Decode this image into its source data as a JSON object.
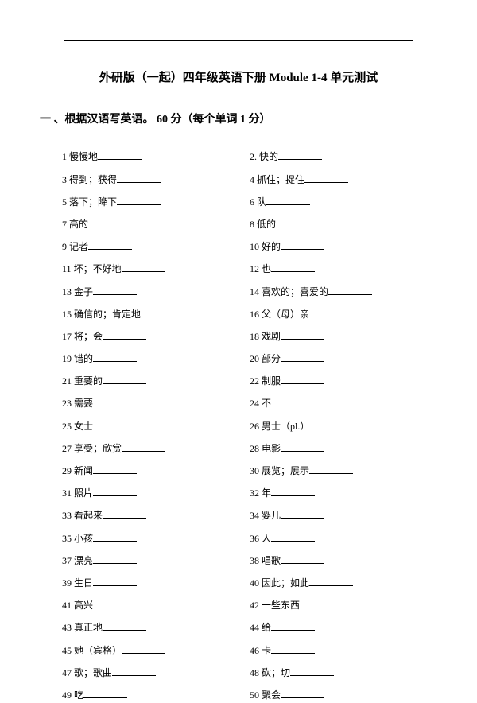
{
  "title": "外研版（一起）四年级英语下册  Module 1-4  单元测试",
  "section": "一 、根据汉语写英语。  60 分（每个单词 1 分）",
  "items": [
    {
      "n": "1",
      "t": "慢慢地",
      "n2": "2.",
      "t2": "快的"
    },
    {
      "n": "3",
      "t": "得到；获得",
      "n2": "4",
      "t2": "抓住；捉住"
    },
    {
      "n": "5",
      "t": "落下；降下",
      "n2": "6",
      "t2": "队"
    },
    {
      "n": "7",
      "t": "高的",
      "n2": "8",
      "t2": "低的"
    },
    {
      "n": "9",
      "t": "记者",
      "n2": "10",
      "t2": "好的"
    },
    {
      "n": "11",
      "t": "坏；不好地",
      "n2": "12",
      "t2": "也"
    },
    {
      "n": "13",
      "t": "金子",
      "n2": "14",
      "t2": "喜欢的；喜爱的"
    },
    {
      "n": "15",
      "t": "确信的；肯定地",
      "n2": "16",
      "t2": "父（母）亲"
    },
    {
      "n": "17",
      "t": "将；会",
      "n2": "18",
      "t2": "戏剧"
    },
    {
      "n": "19",
      "t": "错的",
      "n2": "20",
      "t2": "部分"
    },
    {
      "n": "21",
      "t": "重要的",
      "n2": "22",
      "t2": "制服"
    },
    {
      "n": "23",
      "t": "需要",
      "n2": "24",
      "t2": "不"
    },
    {
      "n": "25",
      "t": "女士",
      "n2": "26",
      "t2": "男士（pl.）"
    },
    {
      "n": "27",
      "t": "享受；欣赏",
      "n2": "28",
      "t2": "电影"
    },
    {
      "n": "29",
      "t": "新闻",
      "n2": "30",
      "t2": "展览；展示"
    },
    {
      "n": "31",
      "t": "照片",
      "n2": "32",
      "t2": "年"
    },
    {
      "n": "33",
      "t": "看起来",
      "n2": "34",
      "t2": "婴儿"
    },
    {
      "n": "35",
      "t": "小孩",
      "n2": "36",
      "t2": "人"
    },
    {
      "n": "37",
      "t": "漂亮",
      "n2": "38",
      "t2": "唱歌"
    },
    {
      "n": "39",
      "t": "生日",
      "n2": "40",
      "t2": "因此；如此"
    },
    {
      "n": "41",
      "t": "高兴",
      "n2": "42",
      "t2": "一些东西"
    },
    {
      "n": "43",
      "t": "真正地",
      "n2": "44",
      "t2": "给"
    },
    {
      "n": "45",
      "t": "她（宾格）",
      "n2": "46",
      "t2": "卡"
    },
    {
      "n": "47",
      "t": "歌；歌曲",
      "n2": "48",
      "t2": "砍；切"
    },
    {
      "n": "49",
      "t": "吃",
      "n2": "50",
      "t2": "聚会"
    }
  ]
}
